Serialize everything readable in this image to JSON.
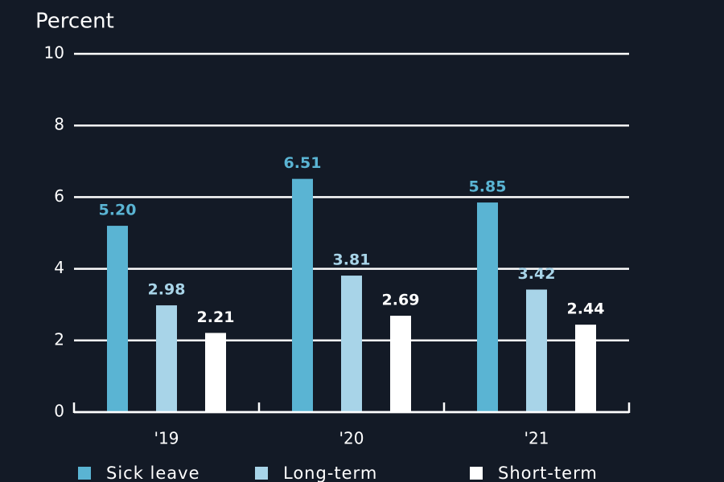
{
  "chart_data": {
    "type": "bar",
    "y_label": "Percent",
    "categories": [
      "'19",
      "'20",
      "'21"
    ],
    "series": [
      {
        "name": "Sick leave",
        "color": "#5ab4d3",
        "values": [
          5.2,
          6.51,
          5.85
        ],
        "value_labels": [
          "5.20",
          "6.51",
          "5.85"
        ]
      },
      {
        "name": "Long-term",
        "color": "#a8d4e8",
        "values": [
          2.98,
          3.81,
          3.42
        ],
        "value_labels": [
          "2.98",
          "3.81",
          "3.42"
        ]
      },
      {
        "name": "Short-term",
        "color": "#ffffff",
        "values": [
          2.21,
          2.69,
          2.44
        ],
        "value_labels": [
          "2.21",
          "2.69",
          "2.44"
        ]
      }
    ],
    "ylim": [
      0,
      10
    ],
    "yticks": [
      0,
      2,
      4,
      6,
      8,
      10
    ],
    "grid": true
  }
}
